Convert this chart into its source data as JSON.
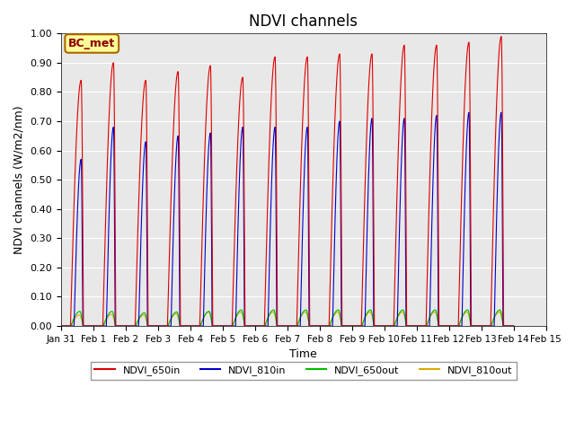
{
  "title": "NDVI channels",
  "xlabel": "Time",
  "ylabel": "NDVI channels (W/m2/nm)",
  "ylim": [
    0.0,
    1.0
  ],
  "yticks": [
    0.0,
    0.1,
    0.2,
    0.3,
    0.4,
    0.5,
    0.6,
    0.7,
    0.8,
    0.9,
    1.0
  ],
  "line_colors": {
    "NDVI_650in": "#dd0000",
    "NDVI_810in": "#0000cc",
    "NDVI_650out": "#00bb00",
    "NDVI_810out": "#ddaa00"
  },
  "legend_labels": [
    "NDVI_650in",
    "NDVI_810in",
    "NDVI_650out",
    "NDVI_810out"
  ],
  "annotation_text": "BC_met",
  "annotation_bg": "#ffff99",
  "annotation_border": "#aa6600",
  "plot_bg": "#e8e8e8",
  "red_peaks": [
    0.84,
    0.9,
    0.84,
    0.87,
    0.89,
    0.85,
    0.92,
    0.92,
    0.93,
    0.93,
    0.96,
    0.96,
    0.97,
    0.99
  ],
  "blue_peaks": [
    0.57,
    0.68,
    0.63,
    0.65,
    0.66,
    0.68,
    0.68,
    0.68,
    0.7,
    0.71,
    0.71,
    0.72,
    0.73,
    0.73
  ],
  "green_peaks": [
    0.05,
    0.05,
    0.045,
    0.048,
    0.05,
    0.055,
    0.055,
    0.055,
    0.055,
    0.055,
    0.055,
    0.055,
    0.055,
    0.055
  ],
  "orange_peaks": [
    0.038,
    0.04,
    0.038,
    0.042,
    0.048,
    0.048,
    0.048,
    0.048,
    0.048,
    0.048,
    0.048,
    0.048,
    0.048,
    0.048
  ]
}
